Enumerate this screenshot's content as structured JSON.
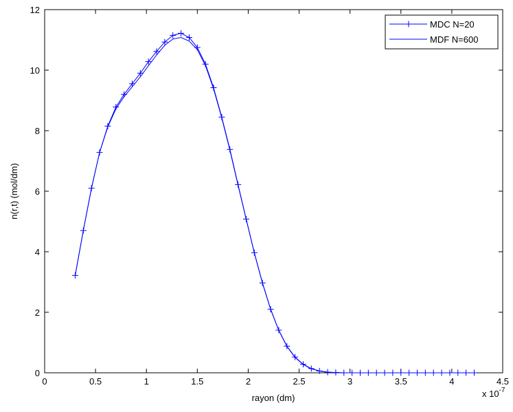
{
  "chart_data": {
    "type": "line",
    "xlabel": "rayon (dm)",
    "ylabel": "n(r,t) (mol/dm)",
    "x_multiplier_label": "x 10",
    "x_multiplier_exponent": "-7",
    "xlim": [
      0,
      4.5
    ],
    "ylim": [
      0,
      12
    ],
    "xticks": [
      0,
      0.5,
      1,
      1.5,
      2,
      2.5,
      3,
      3.5,
      4,
      4.5
    ],
    "yticks": [
      0,
      2,
      4,
      6,
      8,
      10,
      12
    ],
    "xtick_labels": [
      "0",
      "0.5",
      "1",
      "1.5",
      "2",
      "2.5",
      "3",
      "3.5",
      "4",
      "4.5"
    ],
    "ytick_labels": [
      "0",
      "2",
      "4",
      "6",
      "8",
      "10",
      "12"
    ],
    "grid": false,
    "legend_position": "top-right",
    "line_color": "#0000ff",
    "series": [
      {
        "name": "MDC N=20",
        "marker": "plus",
        "x": [
          0.3,
          0.38,
          0.46,
          0.54,
          0.62,
          0.7,
          0.78,
          0.86,
          0.94,
          1.02,
          1.1,
          1.18,
          1.26,
          1.34,
          1.42,
          1.5,
          1.58,
          1.66,
          1.74,
          1.82,
          1.9,
          1.98,
          2.06,
          2.14,
          2.22,
          2.3,
          2.38,
          2.46,
          2.54,
          2.62,
          2.7,
          2.78,
          2.86,
          2.94,
          3.02,
          3.1,
          3.18,
          3.26,
          3.34,
          3.42,
          3.5,
          3.58,
          3.66,
          3.74,
          3.82,
          3.9,
          3.98,
          4.06,
          4.14,
          4.22
        ],
        "y": [
          3.22,
          4.7,
          6.1,
          7.28,
          8.15,
          8.78,
          9.2,
          9.55,
          9.9,
          10.28,
          10.62,
          10.93,
          11.15,
          11.22,
          11.08,
          10.75,
          10.2,
          9.42,
          8.45,
          7.38,
          6.22,
          5.08,
          3.97,
          2.97,
          2.1,
          1.41,
          0.88,
          0.52,
          0.28,
          0.14,
          0.06,
          0.02,
          0.01,
          0,
          0,
          0,
          0,
          0,
          0,
          0,
          0,
          0,
          0,
          0,
          0,
          0,
          0,
          0,
          0,
          0
        ]
      },
      {
        "name": "MDF N=600",
        "marker": "none",
        "x": [
          0.3,
          0.38,
          0.46,
          0.54,
          0.62,
          0.7,
          0.78,
          0.86,
          0.94,
          1.02,
          1.1,
          1.18,
          1.26,
          1.34,
          1.42,
          1.5,
          1.58,
          1.66,
          1.74,
          1.82,
          1.9,
          1.98,
          2.06,
          2.14,
          2.22,
          2.3,
          2.38,
          2.46,
          2.54,
          2.62,
          2.7,
          2.78,
          2.86,
          2.94,
          3.02,
          3.1,
          3.18,
          3.26,
          3.34,
          3.42,
          3.5,
          3.58,
          3.66,
          3.74,
          3.82,
          3.9,
          3.98,
          4.06,
          4.14,
          4.22
        ],
        "y": [
          3.22,
          4.7,
          6.1,
          7.28,
          8.12,
          8.72,
          9.12,
          9.45,
          9.78,
          10.15,
          10.5,
          10.82,
          11.03,
          11.08,
          10.96,
          10.68,
          10.15,
          9.38,
          8.42,
          7.35,
          6.2,
          5.07,
          3.96,
          2.96,
          2.09,
          1.4,
          0.87,
          0.51,
          0.27,
          0.13,
          0.06,
          0.02,
          0.01,
          0,
          0,
          0,
          0,
          0,
          0,
          0,
          0,
          0,
          0,
          0,
          0,
          0,
          0,
          0,
          0,
          0
        ]
      }
    ]
  }
}
